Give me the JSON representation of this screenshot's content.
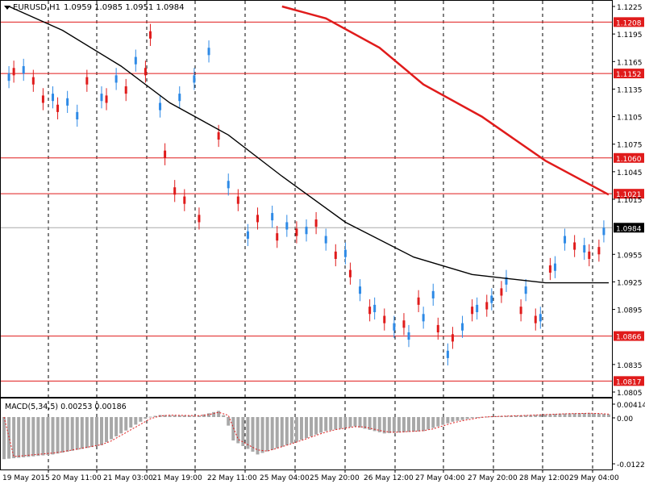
{
  "header": {
    "symbol": "EURUSD,H1",
    "ohlc": "1.0959 1.0985 1.0951 1.0984"
  },
  "macd": {
    "label": "MACD(5,34,5) 0.00253 0.00186",
    "ticks": [
      "0.00414",
      "0.00",
      "-0.01226"
    ]
  },
  "colors": {
    "up": "#2e8ae6",
    "down": "#e01b1b",
    "level": "#e01b1b",
    "ma_fast": "#000000",
    "ma_slow": "#e01b1b",
    "label_bg": "#e01b1b",
    "histogram": "#a8a8a8"
  },
  "chart_data": {
    "type": "candlestick",
    "timeframe": "H1",
    "ylim": [
      1.0805,
      1.1225
    ],
    "price_ticks": [
      "1.1225",
      "1.1195",
      "1.1165",
      "1.1135",
      "1.1105",
      "1.1075",
      "1.1045",
      "1.1015",
      "1.0955",
      "1.0925",
      "1.0895",
      "1.0835",
      "1.0805"
    ],
    "levels": [
      "1.1208",
      "1.1152",
      "1.1060",
      "1.1021",
      "1.0866",
      "1.0817"
    ],
    "current_price": "1.0984",
    "x_labels": [
      "19 May 2015",
      "20 May 11:00",
      "21 May 03:00",
      "21 May 19:00",
      "22 May 11:00",
      "25 May 04:00",
      "25 May 20:00",
      "26 May 12:00",
      "27 May 04:00",
      "27 May 20:00",
      "28 May 12:00",
      "29 May 04:00"
    ],
    "ma_fast": [
      [
        1,
        1.1225
      ],
      [
        12,
        1.1199
      ],
      [
        24,
        1.116
      ],
      [
        34,
        1.112
      ],
      [
        46,
        1.1085
      ],
      [
        57,
        1.104
      ],
      [
        70,
        1.099
      ],
      [
        84,
        1.0952
      ],
      [
        96,
        1.0933
      ],
      [
        111,
        1.0924
      ],
      [
        124,
        1.0924
      ]
    ],
    "ma_slow": [
      [
        57,
        1.1225
      ],
      [
        66,
        1.1212
      ],
      [
        77,
        1.118
      ],
      [
        86,
        1.114
      ],
      [
        98,
        1.1105
      ],
      [
        111,
        1.1057
      ],
      [
        124,
        1.102
      ]
    ],
    "candles_up": [
      [
        1,
        1.1152
      ],
      [
        4,
        1.116
      ],
      [
        10,
        1.113
      ],
      [
        13,
        1.1125
      ],
      [
        15,
        1.111
      ],
      [
        20,
        1.113
      ],
      [
        23,
        1.115
      ],
      [
        27,
        1.117
      ],
      [
        32,
        1.112
      ],
      [
        36,
        1.113
      ],
      [
        39,
        1.115
      ],
      [
        42,
        1.118
      ],
      [
        46,
        1.1035
      ],
      [
        50,
        1.098
      ],
      [
        55,
        1.1
      ],
      [
        58,
        1.099
      ],
      [
        62,
        1.0985
      ],
      [
        66,
        1.0975
      ],
      [
        70,
        1.096
      ],
      [
        73,
        1.092
      ],
      [
        76,
        1.09
      ],
      [
        80,
        1.088
      ],
      [
        83,
        1.087
      ],
      [
        86,
        1.089
      ],
      [
        88,
        1.0915
      ],
      [
        91,
        1.085
      ],
      [
        94,
        1.088
      ],
      [
        97,
        1.09
      ],
      [
        100,
        1.091
      ],
      [
        103,
        1.093
      ],
      [
        107,
        1.092
      ],
      [
        110,
        1.089
      ],
      [
        113,
        1.0945
      ],
      [
        115,
        1.0975
      ],
      [
        119,
        1.0965
      ],
      [
        123,
        1.0984
      ]
    ],
    "candles_down": [
      [
        2,
        1.115
      ],
      [
        6,
        1.114
      ],
      [
        8,
        1.112
      ],
      [
        11,
        1.111
      ],
      [
        17,
        1.114
      ],
      [
        21,
        1.112
      ],
      [
        25,
        1.113
      ],
      [
        29,
        1.115
      ],
      [
        30,
        1.119
      ],
      [
        33,
        1.106
      ],
      [
        35,
        1.102
      ],
      [
        37,
        1.101
      ],
      [
        40,
        1.099
      ],
      [
        44,
        1.108
      ],
      [
        48,
        1.101
      ],
      [
        52,
        1.099
      ],
      [
        56,
        1.097
      ],
      [
        60,
        1.0975
      ],
      [
        64,
        1.0985
      ],
      [
        68,
        1.095
      ],
      [
        71,
        1.093
      ],
      [
        75,
        1.089
      ],
      [
        78,
        1.088
      ],
      [
        82,
        1.0875
      ],
      [
        85,
        1.09
      ],
      [
        89,
        1.087
      ],
      [
        92,
        1.086
      ],
      [
        96,
        1.089
      ],
      [
        99,
        1.0895
      ],
      [
        102,
        1.091
      ],
      [
        106,
        1.089
      ],
      [
        109,
        1.088
      ],
      [
        112,
        1.0935
      ],
      [
        117,
        1.096
      ],
      [
        120,
        1.095
      ],
      [
        122,
        1.0955
      ]
    ]
  }
}
